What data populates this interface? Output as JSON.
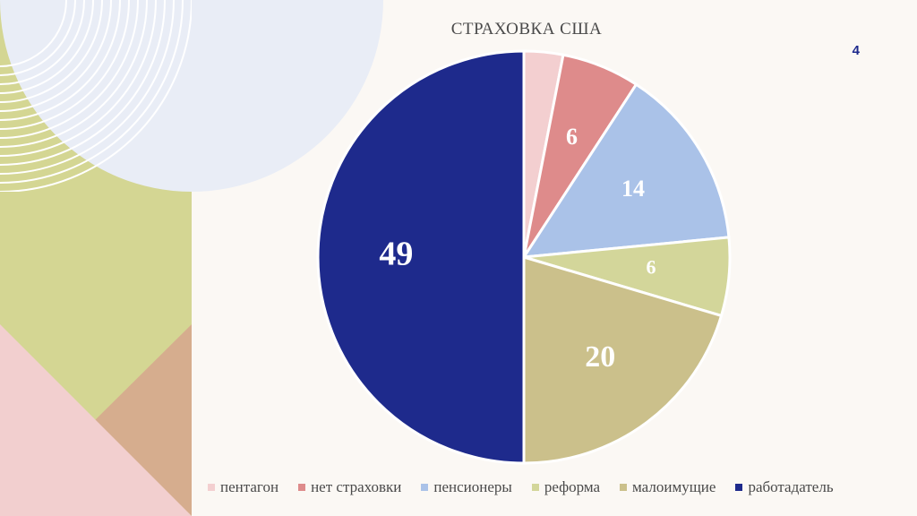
{
  "slide": {
    "page_number": "4"
  },
  "chart_data": {
    "type": "pie",
    "title": "СТРАХОВКА США",
    "categories": [
      "пентагон",
      "нет страховки",
      "пенсионеры",
      "реформа",
      "малоимущие",
      "работадатель"
    ],
    "values": [
      3,
      6,
      14,
      6,
      20,
      49
    ],
    "labels": [
      "",
      "6",
      "14",
      "6",
      "20",
      "49"
    ],
    "colors": [
      "#f3cfd0",
      "#de8b8b",
      "#aac2e8",
      "#d3d69a",
      "#cbc08b",
      "#1e2a8c"
    ],
    "legend_position": "bottom"
  }
}
